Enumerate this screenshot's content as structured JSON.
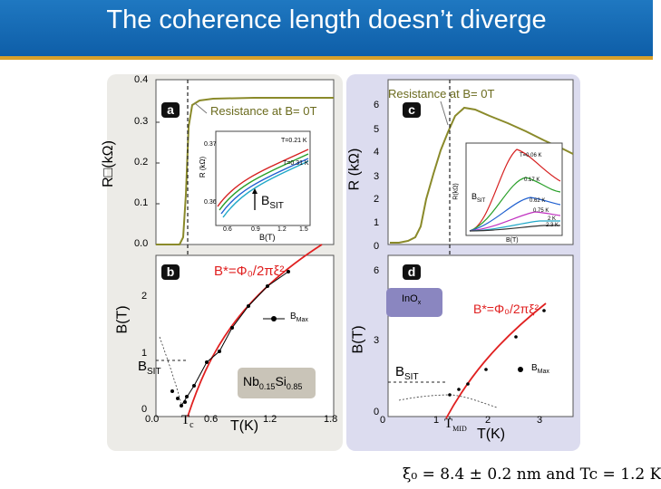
{
  "slide": {
    "title": "The coherence length doesn’t diverge",
    "formula": "ξ₀ = 8.4 ± 0.2 nm  and  Tc = 1.2 K"
  },
  "panel_left": {
    "a": {
      "badge": "a",
      "legend": "Resistance at B= 0T",
      "ylabel": "R□(kΩ)",
      "yticks": [
        "0.4",
        "0.3",
        "0.2",
        "0.1",
        "0.0"
      ],
      "inset": {
        "yticks": [
          "0.37",
          "0.36"
        ],
        "ylabel": "R (kΩ)",
        "curve_label_1": "T=0.21 K",
        "curve_label_2": "T=0.31 K",
        "marker": "BSIT",
        "xticks": [
          "0.6",
          "0.9",
          "1.2",
          "1.5"
        ],
        "xlabel": "B(T)"
      }
    },
    "b": {
      "badge": "b",
      "formula_label": "B*=Φ₀/2πξ²",
      "ylabel": "B(T)",
      "yticks": [
        "2",
        "1",
        "0"
      ],
      "bsit": "BSIT",
      "bmax": "BMax",
      "material": "Nb0.15Si0.85",
      "xticks": [
        "0.0",
        "0.6",
        "1.2",
        "1.8"
      ],
      "tc": "Tc",
      "xlabel": "T(K)"
    }
  },
  "panel_right": {
    "c": {
      "badge": "c",
      "legend": "Resistance at B= 0T",
      "ylabel": "R (kΩ)",
      "yticks": [
        "6",
        "5",
        "4",
        "3",
        "2",
        "1",
        "0"
      ],
      "inset": {
        "curve_labels": [
          "T=0.06 K",
          "0.17 K",
          "0.62 K",
          "0.75 K",
          "2 K",
          "2.3 K"
        ],
        "marker": "BSIT",
        "ylabel": "R(kΩ)",
        "xlabel": "B(T)"
      }
    },
    "d": {
      "badge": "d",
      "material": "InOx",
      "formula_label": "B*=Φ₀/2πξ²",
      "ylabel": "B(T)",
      "yticks": [
        "6",
        "3",
        "0"
      ],
      "bsit": "BSIT",
      "bmax": "BMax",
      "xticks": [
        "0",
        "1",
        "2",
        "3"
      ],
      "tmid": "TMID",
      "xlabel": "T(K)"
    }
  }
}
